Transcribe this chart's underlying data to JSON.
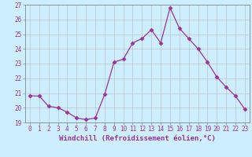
{
  "x": [
    0,
    1,
    2,
    3,
    4,
    5,
    6,
    7,
    8,
    9,
    10,
    11,
    12,
    13,
    14,
    15,
    16,
    17,
    18,
    19,
    20,
    21,
    22,
    23
  ],
  "y": [
    20.8,
    20.8,
    20.1,
    20.0,
    19.7,
    19.3,
    19.2,
    19.3,
    20.9,
    23.1,
    23.3,
    24.4,
    24.7,
    25.3,
    24.4,
    26.8,
    25.4,
    24.7,
    24.0,
    23.1,
    22.1,
    21.4,
    20.8,
    19.9
  ],
  "line_color": "#993399",
  "marker": "D",
  "marker_size": 2.5,
  "xlabel": "Windchill (Refroidissement éolien,°C)",
  "ylim": [
    19,
    27
  ],
  "xlim": [
    -0.5,
    23.5
  ],
  "yticks": [
    19,
    20,
    21,
    22,
    23,
    24,
    25,
    26,
    27
  ],
  "xticks": [
    0,
    1,
    2,
    3,
    4,
    5,
    6,
    7,
    8,
    9,
    10,
    11,
    12,
    13,
    14,
    15,
    16,
    17,
    18,
    19,
    20,
    21,
    22,
    23
  ],
  "bg_color": "#cceeff",
  "grid_color": "#bbbbbb",
  "label_fontsize": 6.5,
  "tick_fontsize": 5.5
}
